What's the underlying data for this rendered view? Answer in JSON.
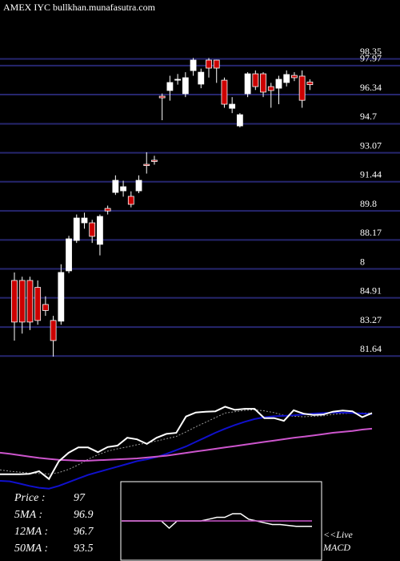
{
  "chart_data": {
    "type": "candlestick",
    "title": "AMEX IYC bullkhan.munafasutra.com",
    "ylim": [
      80.93,
      101.66
    ],
    "yticks": [
      98.35,
      97.97,
      96.34,
      94.7,
      93.07,
      91.44,
      89.8,
      88.17,
      {
        "value": 86.54,
        "label": "8"
      },
      84.91,
      83.27,
      81.64
    ],
    "grid": true,
    "grid_color": "#26266e",
    "up_color": "#ffffff",
    "down_color": "#cc0000",
    "open": [
      85.89,
      85.89,
      85.89,
      85.5,
      84.54,
      83.64,
      83.6,
      86.43,
      88.14,
      89.13,
      89.13,
      87.92,
      89.94,
      90.84,
      90.93,
      90.62,
      90.93,
      92.42,
      92.65,
      96.25,
      96.57,
      97.15,
      96.39,
      97.69,
      96.93,
      98.28,
      98.28,
      97.15,
      95.57,
      94.58,
      96.39,
      97.51,
      97.51,
      96.79,
      96.7,
      97.02,
      97.42,
      97.38,
      97.05
    ],
    "high": [
      86.34,
      86.1,
      86.1,
      85.89,
      85.0,
      83.9,
      86.8,
      88.4,
      89.6,
      89.7,
      89.3,
      89.6,
      90.1,
      91.8,
      91.5,
      90.9,
      91.8,
      93.1,
      92.9,
      96.4,
      97.4,
      97.5,
      97.6,
      98.4,
      97.8,
      98.4,
      98.3,
      97.3,
      96.2,
      95.3,
      97.6,
      97.7,
      97.6,
      97.0,
      97.4,
      97.7,
      97.6,
      97.7,
      97.2
    ],
    "low": [
      82.51,
      82.9,
      83.1,
      83.4,
      83.9,
      81.61,
      83.4,
      86.3,
      88.0,
      88.8,
      88.0,
      87.3,
      89.6,
      90.7,
      90.6,
      90.0,
      90.8,
      91.9,
      92.4,
      94.9,
      96.0,
      96.9,
      96.2,
      97.4,
      96.7,
      97.3,
      97.0,
      95.6,
      95.3,
      94.5,
      96.2,
      96.6,
      96.2,
      95.6,
      95.8,
      96.8,
      97.1,
      95.6,
      96.6
    ],
    "close": [
      83.55,
      83.55,
      83.55,
      83.64,
      84.2,
      82.51,
      86.34,
      88.23,
      89.4,
      89.4,
      88.37,
      89.49,
      89.8,
      91.52,
      91.16,
      90.17,
      91.52,
      92.35,
      92.58,
      96.16,
      97.02,
      97.2,
      97.29,
      98.28,
      97.6,
      97.83,
      97.83,
      95.8,
      95.8,
      95.21,
      97.51,
      96.79,
      96.48,
      96.57,
      97.2,
      97.47,
      97.29,
      96.02,
      96.9
    ],
    "ma_panel": {
      "ylim": [
        78.6,
        103.1
      ],
      "series": [
        {
          "name": "5MA",
          "color": "#999999",
          "values": [
            84.5,
            84.2,
            84.0,
            83.8,
            83.7,
            83.6,
            83.9,
            84.6,
            85.6,
            86.8,
            87.8,
            88.6,
            89.1,
            89.5,
            90.0,
            90.4,
            90.8,
            91.3,
            91.8,
            92.8,
            93.9,
            94.9,
            95.9,
            96.9,
            97.2,
            97.5,
            97.6,
            97.4,
            97.0,
            96.4,
            96.2,
            96.1,
            96.2,
            96.3,
            96.6,
            96.8,
            96.9,
            96.9,
            96.9
          ]
        },
        {
          "name": "12MA",
          "color": "#1010cc",
          "values": [
            82.1,
            82.0,
            81.5,
            81.0,
            80.6,
            80.4,
            81.0,
            81.8,
            82.6,
            83.4,
            84.0,
            84.6,
            85.2,
            85.8,
            86.4,
            86.8,
            87.3,
            88.0,
            88.8,
            89.6,
            90.6,
            91.6,
            92.6,
            93.5,
            94.3,
            95.0,
            95.6,
            96.0,
            96.2,
            96.3,
            96.4,
            96.6,
            96.8,
            96.9,
            97.0,
            97.0,
            96.9,
            96.8,
            96.7
          ]
        },
        {
          "name": "50MA",
          "color": "#cc55cc",
          "values": [
            88.25,
            88.0,
            87.7,
            87.4,
            87.1,
            86.9,
            86.7,
            86.6,
            86.5,
            86.5,
            86.6,
            86.7,
            86.8,
            86.9,
            87.0,
            87.2,
            87.4,
            87.6,
            87.9,
            88.2,
            88.5,
            88.8,
            89.1,
            89.4,
            89.7,
            90.0,
            90.3,
            90.6,
            90.9,
            91.2,
            91.5,
            91.75,
            92.0,
            92.3,
            92.6,
            92.8,
            93.0,
            93.3,
            93.5
          ]
        },
        {
          "name": "Price",
          "color": "#ffffff",
          "values": [
            83.55,
            83.55,
            83.55,
            83.64,
            84.2,
            82.51,
            86.34,
            88.23,
            89.4,
            89.4,
            88.37,
            89.49,
            89.8,
            91.52,
            91.16,
            90.17,
            91.52,
            92.35,
            92.58,
            96.16,
            97.02,
            97.2,
            97.29,
            98.28,
            97.6,
            97.83,
            97.83,
            95.8,
            95.8,
            95.21,
            97.51,
            96.79,
            96.48,
            96.57,
            97.2,
            97.47,
            97.29,
            96.02,
            96.9
          ]
        }
      ]
    },
    "legend": [
      {
        "label": "Price  :",
        "value": 97
      },
      {
        "label": "5MA :",
        "value": 96.9
      },
      {
        "label": "12MA :",
        "value": 96.7
      },
      {
        "label": "50MA :",
        "value": 93.5
      }
    ],
    "macd_panel": {
      "labels": [
        "<<Live",
        "MACD"
      ],
      "ylim": [
        -2,
        2
      ],
      "series": [
        {
          "name": "MACD",
          "color": "#ffffff",
          "values": [
            0,
            0,
            0,
            0,
            0,
            0,
            -0.4,
            0,
            0,
            0,
            0,
            0.1,
            0.2,
            0.2,
            0.4,
            0.4,
            0.1,
            0,
            -0.1,
            -0.2,
            -0.2,
            -0.25,
            -0.3,
            -0.3,
            -0.3
          ]
        },
        {
          "name": "Signal",
          "color": "#cc55cc",
          "values": [
            0,
            0,
            0,
            0,
            0,
            0,
            0,
            0,
            0,
            0,
            0,
            0,
            0,
            0,
            0,
            0,
            0,
            0,
            0,
            0,
            0,
            0,
            0,
            0,
            0
          ]
        }
      ]
    }
  }
}
